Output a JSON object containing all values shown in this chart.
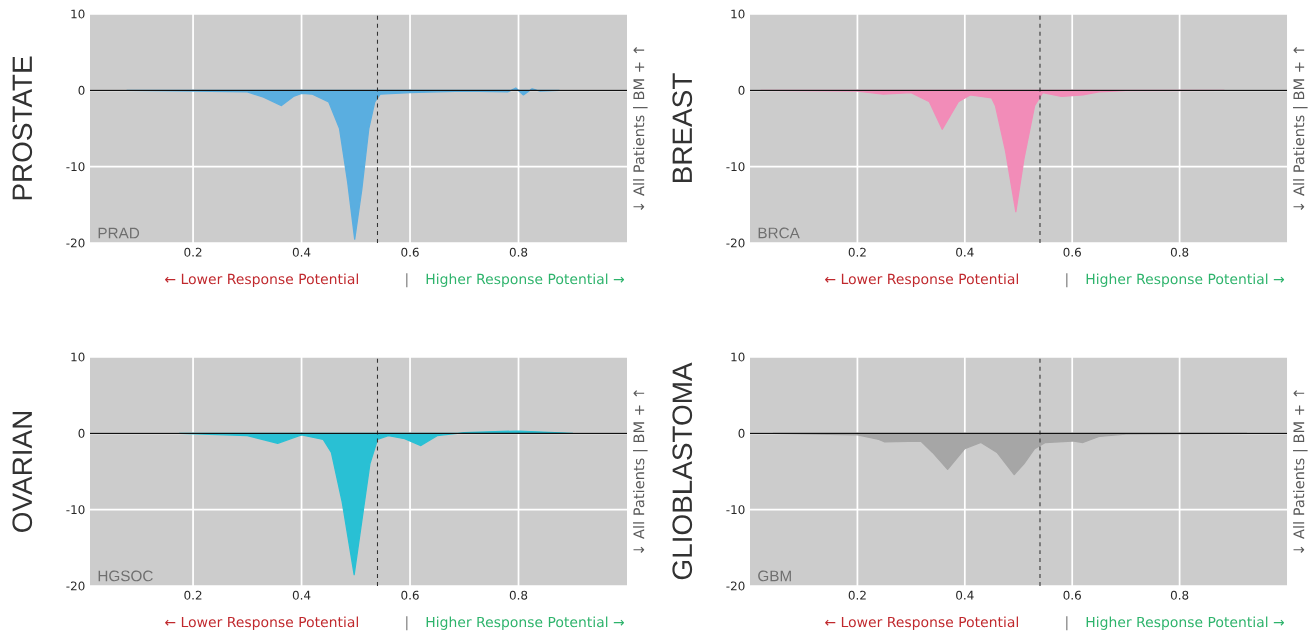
{
  "chart_data": [
    {
      "type": "area",
      "ylabel": "PROSTATE",
      "y2label": "↓ All Patients | BM + ↑",
      "annotations": [
        "PRAD",
        "← Lower Response Potential",
        "|",
        "Higher Response Potential →"
      ],
      "xlim": [
        0.01,
        1.0
      ],
      "ylim": [
        -20,
        10
      ],
      "xticks": [
        0.2,
        0.4,
        0.6,
        0.8
      ],
      "yticks": [
        -20,
        -10,
        0,
        10
      ],
      "grid": true,
      "ref_lines": [
        {
          "axis": "x",
          "value": 0.54,
          "color": "#333333",
          "line_style": "dashed"
        },
        {
          "axis": "y",
          "value": 0,
          "color": "#111111",
          "line_style": "solid"
        }
      ],
      "series": [
        {
          "color": "#5aaee0",
          "x": [
            0.078,
            0.2,
            0.3,
            0.33,
            0.363,
            0.385,
            0.4,
            0.42,
            0.45,
            0.47,
            0.485,
            0.498,
            0.511,
            0.524,
            0.535,
            0.545,
            0.6,
            0.7,
            0.78,
            0.795,
            0.809,
            0.825,
            0.84,
            0.875
          ],
          "values": [
            0,
            -0.1,
            -0.2,
            -0.9,
            -2.0,
            -0.8,
            -0.4,
            -0.5,
            -1.5,
            -5,
            -12,
            -19.5,
            -13,
            -5,
            -1.5,
            -0.5,
            -0.3,
            -0.1,
            -0.2,
            0.3,
            -0.6,
            0.2,
            -0.1,
            0
          ]
        }
      ]
    },
    {
      "type": "area",
      "ylabel": "BREAST",
      "y2label": "↓ All Patients | BM + ↑",
      "annotations": [
        "BRCA",
        "← Lower Response Potential",
        "|",
        "Higher Response Potential →"
      ],
      "xlim": [
        0.0,
        1.0
      ],
      "ylim": [
        -20,
        10
      ],
      "xticks": [
        0.2,
        0.4,
        0.6,
        0.8
      ],
      "yticks": [
        -20,
        -10,
        0,
        10
      ],
      "grid": true,
      "ref_lines": [
        {
          "axis": "x",
          "value": 0.54,
          "color": "#333333",
          "line_style": "dashed"
        },
        {
          "axis": "y",
          "value": 0,
          "color": "#111111",
          "line_style": "solid"
        }
      ],
      "series": [
        {
          "color": "#f28cb8",
          "x": [
            0.02,
            0.2,
            0.248,
            0.3,
            0.334,
            0.358,
            0.388,
            0.41,
            0.45,
            0.457,
            0.476,
            0.495,
            0.51,
            0.53,
            0.545,
            0.58,
            0.62,
            0.65,
            0.7,
            0.883
          ],
          "values": [
            0,
            -0.1,
            -0.5,
            -0.3,
            -1.5,
            -5.1,
            -1.5,
            -0.6,
            -1.0,
            -2,
            -8,
            -15.9,
            -9,
            -2,
            -0.3,
            -0.8,
            -0.6,
            -0.2,
            -0.05,
            0
          ]
        }
      ]
    },
    {
      "type": "area",
      "ylabel": "OVARIAN",
      "y2label": "↓ All Patients | BM + ↑",
      "annotations": [
        "HGSOC",
        "← Lower Response Potential",
        "|",
        "Higher Response Potential →"
      ],
      "xlim": [
        0.01,
        1.0
      ],
      "ylim": [
        -20,
        10
      ],
      "xticks": [
        0.2,
        0.4,
        0.6,
        0.8
      ],
      "yticks": [
        -20,
        -10,
        0,
        10
      ],
      "grid": true,
      "ref_lines": [
        {
          "axis": "x",
          "value": 0.54,
          "color": "#333333",
          "line_style": "dashed"
        },
        {
          "axis": "y",
          "value": 0,
          "color": "#111111",
          "line_style": "solid"
        }
      ],
      "series": [
        {
          "color": "#29c0d4",
          "x": [
            0.175,
            0.3,
            0.356,
            0.4,
            0.44,
            0.455,
            0.475,
            0.497,
            0.514,
            0.526,
            0.54,
            0.56,
            0.59,
            0.62,
            0.65,
            0.7,
            0.8,
            0.9
          ],
          "values": [
            0,
            -0.3,
            -1.3,
            -0.2,
            -0.8,
            -2.5,
            -9,
            -18.5,
            -10,
            -4,
            -0.8,
            -0.3,
            -0.7,
            -1.6,
            -0.3,
            0.1,
            0.3,
            0
          ]
        }
      ]
    },
    {
      "type": "area",
      "ylabel": "GLIOBLASTOMA",
      "y2label": "↓ All Patients | BM + ↑",
      "annotations": [
        "GBM",
        "← Lower Response Potential",
        "|",
        "Higher Response Potential →"
      ],
      "xlim": [
        0.0,
        1.0
      ],
      "ylim": [
        -20,
        10
      ],
      "xticks": [
        0.2,
        0.4,
        0.6,
        0.8
      ],
      "yticks": [
        -20,
        -10,
        0,
        10
      ],
      "grid": true,
      "ref_lines": [
        {
          "axis": "x",
          "value": 0.54,
          "color": "#333333",
          "line_style": "dashed"
        },
        {
          "axis": "y",
          "value": 0,
          "color": "#111111",
          "line_style": "solid"
        }
      ],
      "series": [
        {
          "color": "#a6a6a6",
          "x": [
            0.043,
            0.2,
            0.24,
            0.25,
            0.318,
            0.34,
            0.368,
            0.4,
            0.43,
            0.46,
            0.492,
            0.51,
            0.53,
            0.55,
            0.6,
            0.62,
            0.65,
            0.7,
            0.925
          ],
          "values": [
            0,
            -0.2,
            -0.8,
            -1.1,
            -1.0,
            -2.5,
            -4.7,
            -2,
            -1.2,
            -2.5,
            -5.4,
            -4,
            -2,
            -1.2,
            -1.0,
            -1.2,
            -0.4,
            -0.1,
            0
          ]
        }
      ]
    }
  ]
}
